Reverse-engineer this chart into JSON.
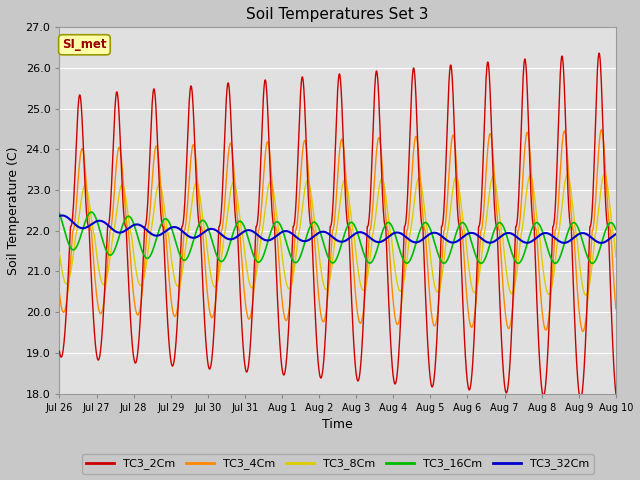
{
  "title": "Soil Temperatures Set 3",
  "xlabel": "Time",
  "ylabel": "Soil Temperature (C)",
  "ylim": [
    18.0,
    27.0
  ],
  "yticks": [
    18.0,
    19.0,
    20.0,
    21.0,
    22.0,
    23.0,
    24.0,
    25.0,
    26.0,
    27.0
  ],
  "xtick_labels": [
    "Jul 26",
    "Jul 27",
    "Jul 28",
    "Jul 29",
    "Jul 30",
    "Jul 31",
    "Aug 1",
    "Aug 2",
    "Aug 3",
    "Aug 4",
    "Aug 5",
    "Aug 6",
    "Aug 7",
    "Aug 8",
    "Aug 9",
    "Aug 10"
  ],
  "series_colors": {
    "TC3_2Cm": "#cc0000",
    "TC3_4Cm": "#ff8800",
    "TC3_8Cm": "#ddcc00",
    "TC3_16Cm": "#00bb00",
    "TC3_32Cm": "#0000cc"
  },
  "fig_bg_color": "#c8c8c8",
  "plot_bg_color": "#e0e0e0",
  "annotation_text": "SI_met",
  "annotation_color": "#990000",
  "annotation_bg": "#ffffaa",
  "annotation_border": "#999900"
}
